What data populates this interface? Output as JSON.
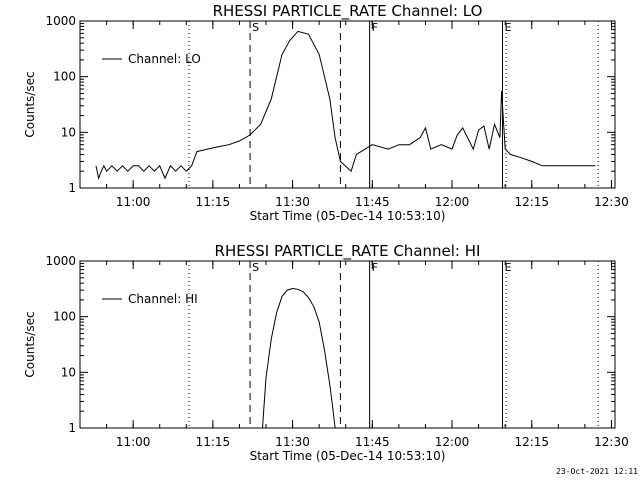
{
  "footer_date": "23-Oct-2021 12:11",
  "colors": {
    "background": "#ffffff",
    "foreground": "#000000"
  },
  "chart_data": [
    {
      "type": "line",
      "title": "RHESSI PARTICLE_RATE Channel: LO",
      "xlabel": "Start Time (05-Dec-14 10:53:10)",
      "ylabel": "Counts/sec",
      "yscale": "log",
      "ylim": [
        1,
        1000
      ],
      "xlim_minutes": [
        -3.17,
        97.5
      ],
      "x_tick_labels": [
        "11:00",
        "11:15",
        "11:30",
        "11:45",
        "12:00",
        "12:15",
        "12:30"
      ],
      "y_tick_labels": [
        "1",
        "10",
        "100",
        "1000"
      ],
      "legend": {
        "label": "Channel: LO",
        "placement": "top-left"
      },
      "markers": [
        {
          "label": "",
          "time": "11:10:30",
          "style": "dotted"
        },
        {
          "label": "S",
          "time": "11:22:00",
          "style": "dashed"
        },
        {
          "label": "",
          "time": "11:39:00",
          "style": "dashed"
        },
        {
          "label": "F",
          "time": "11:44:30",
          "style": "solid"
        },
        {
          "label": "E",
          "time": "12:09:30",
          "style": "solid"
        },
        {
          "label": "",
          "time": "12:10:10",
          "style": "dotted"
        },
        {
          "label": "",
          "time": "12:27:30",
          "style": "dotted"
        }
      ],
      "series": [
        {
          "time": [
            "10:53:00",
            "10:53:30",
            "10:54:00",
            "10:54:30",
            "10:55:00",
            "10:56:00",
            "10:57:00",
            "10:58:00",
            "10:59:00",
            "11:00:00",
            "11:01:00",
            "11:02:00",
            "11:03:00",
            "11:04:00",
            "11:05:00",
            "11:06:00",
            "11:07:00",
            "11:08:00",
            "11:09:00",
            "11:10:00",
            "11:11:00",
            "11:12:00",
            "11:14:00",
            "11:16:00",
            "11:18:00",
            "11:20:00",
            "11:22:00",
            "11:24:00",
            "11:26:00",
            "11:28:00",
            "11:29:30",
            "11:31:00",
            "11:33:00",
            "11:35:00",
            "11:37:00",
            "11:38:00",
            "11:39:00",
            "11:41:00",
            "11:42:00",
            "11:45:00",
            "11:48:00",
            "11:50:00",
            "11:52:00",
            "11:54:00",
            "11:55:00",
            "11:56:00",
            "11:58:00",
            "12:00:00",
            "12:01:00",
            "12:02:00",
            "12:04:00",
            "12:05:00",
            "12:06:00",
            "12:07:00",
            "12:08:00",
            "12:09:00",
            "12:09:20",
            "12:10:00",
            "12:11:00",
            "12:13:00",
            "12:15:00",
            "12:17:00",
            "12:19:00",
            "12:21:00",
            "12:23:00",
            "12:25:00",
            "12:27:00"
          ],
          "values": [
            2.5,
            1.5,
            2,
            2.5,
            2,
            2.5,
            2,
            2.5,
            2,
            2.5,
            2.5,
            2,
            2.5,
            2,
            2.5,
            1.5,
            2.5,
            2,
            2.5,
            2,
            2.5,
            4.5,
            5,
            5.5,
            6,
            7,
            9,
            14,
            40,
            250,
            450,
            650,
            580,
            250,
            40,
            8,
            3,
            2,
            4,
            6,
            5,
            6,
            6,
            8,
            12,
            5,
            6,
            5,
            9,
            12,
            5,
            11,
            13,
            5,
            14,
            8,
            55,
            5,
            4,
            3.5,
            3,
            2.5,
            2.5,
            2.5,
            2.5,
            2.5,
            2.5
          ]
        }
      ]
    },
    {
      "type": "line",
      "title": "RHESSI PARTICLE_RATE Channel: HI",
      "xlabel": "Start Time (05-Dec-14 10:53:10)",
      "ylabel": "Counts/sec",
      "yscale": "log",
      "ylim": [
        1,
        1000
      ],
      "xlim_minutes": [
        -3.17,
        97.5
      ],
      "x_tick_labels": [
        "11:00",
        "11:15",
        "11:30",
        "11:45",
        "12:00",
        "12:15",
        "12:30"
      ],
      "y_tick_labels": [
        "1",
        "10",
        "100",
        "1000"
      ],
      "legend": {
        "label": "Channel: HI",
        "placement": "top-left"
      },
      "markers": [
        {
          "label": "",
          "time": "11:10:30",
          "style": "dotted"
        },
        {
          "label": "S",
          "time": "11:22:00",
          "style": "dashed"
        },
        {
          "label": "",
          "time": "11:39:00",
          "style": "dashed"
        },
        {
          "label": "F",
          "time": "11:44:30",
          "style": "solid"
        },
        {
          "label": "E",
          "time": "12:09:30",
          "style": "solid"
        },
        {
          "label": "",
          "time": "12:10:10",
          "style": "dotted"
        },
        {
          "label": "",
          "time": "12:27:30",
          "style": "dotted"
        }
      ],
      "series": [
        {
          "time": [
            "11:24:20",
            "11:25:00",
            "11:26:00",
            "11:27:00",
            "11:28:00",
            "11:29:00",
            "11:30:00",
            "11:31:00",
            "11:32:00",
            "11:33:00",
            "11:34:00",
            "11:35:00",
            "11:36:00",
            "11:37:00",
            "11:37:30",
            "11:38:00"
          ],
          "values": [
            1,
            8,
            40,
            120,
            230,
            300,
            320,
            310,
            280,
            220,
            150,
            80,
            25,
            6,
            2.5,
            1
          ]
        }
      ]
    }
  ]
}
